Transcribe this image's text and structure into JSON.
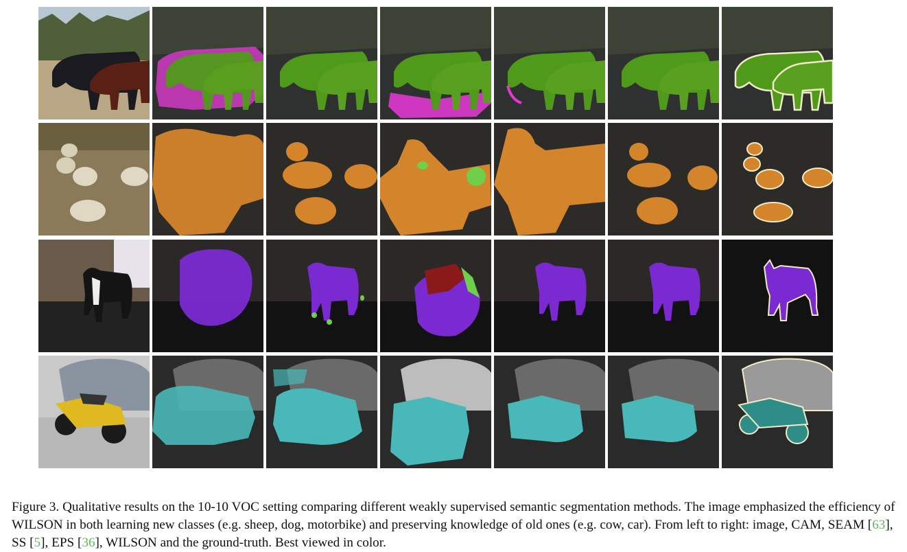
{
  "figure": {
    "caption_prefix": "Figure 3. Qualitative results on the 10-10 VOC setting comparing different weakly supervised semantic segmentation methods. The image emphasized the efficiency of WILSON in both learning new classes (e.g. sheep, dog, motorbike) and preserving knowledge of old ones (e.g. cow, car). From left to right: image, CAM, SEAM [",
    "cite_seam": "63",
    "cite_ss_pre": "], SS [",
    "cite_ss": "5",
    "cite_eps_pre": "], EPS [",
    "cite_eps": "36",
    "caption_suffix": "], WILSON and the ground-truth. Best viewed in color.",
    "columns": [
      "image",
      "CAM",
      "SEAM",
      "SS",
      "EPS",
      "WILSON",
      "ground-truth"
    ],
    "rows": [
      "cow",
      "sheep",
      "dog",
      "motorbike"
    ]
  },
  "colors": {
    "cow": "#4f9a1a",
    "cow_wrong": "#e03ad0",
    "sheep": "#e08a2a",
    "sheep_wrong": "#6fcf4a",
    "dog": "#7a2ad0",
    "dog_wrong": "#8a1a1a",
    "motorbike": "#49b8b8",
    "car": "#bdbdbd",
    "gt_outline": "#f1ebc8"
  }
}
